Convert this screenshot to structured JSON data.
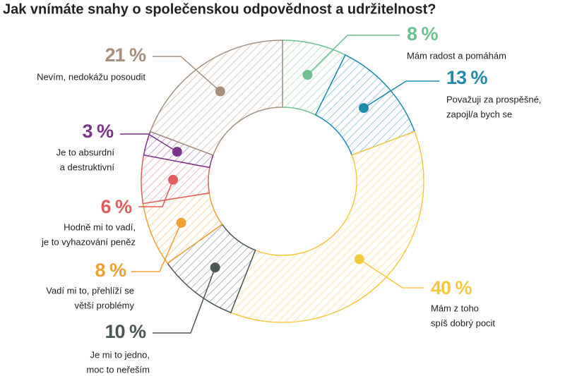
{
  "chart_data": {
    "type": "donut",
    "title": "Jak vnímáte snahy o společenskou odpovědnost a udržitelnost?",
    "categories": [
      [
        "Mám radost a pomáhám"
      ],
      [
        "Považuji za prospěšné,",
        "zapojl/a bych se"
      ],
      [
        "Mám z toho",
        "spíš dobrý pocit"
      ],
      [
        "Je mi to jedno,",
        "moc to neřeším"
      ],
      [
        "Vadí mi to, přehlíží se",
        "větší problémy"
      ],
      [
        "Hodně mi to vadí,",
        "je to vyhazování peněz"
      ],
      [
        "Je to absurdní",
        "a destruktivní"
      ],
      [
        "Nevím, nedokážu posoudit"
      ]
    ],
    "values": [
      8,
      13,
      40,
      10,
      8,
      6,
      3,
      21
    ],
    "value_labels": [
      "8 %",
      "13 %",
      "40 %",
      "10 %",
      "8 %",
      "6 %",
      "3 %",
      "21 %"
    ],
    "colors": [
      "#6cc08f",
      "#1f8cae",
      "#f5c842",
      "#4b5753",
      "#f0a030",
      "#e35d5d",
      "#7a3488",
      "#a68e7c"
    ]
  }
}
